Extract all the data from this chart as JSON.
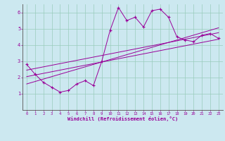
{
  "xlabel": "Windchill (Refroidissement éolien,°C)",
  "x_values": [
    0,
    1,
    2,
    3,
    4,
    5,
    6,
    7,
    8,
    9,
    10,
    11,
    12,
    13,
    14,
    15,
    16,
    17,
    18,
    19,
    20,
    21,
    22,
    23
  ],
  "main_y": [
    2.8,
    2.2,
    1.7,
    1.4,
    1.1,
    1.2,
    1.6,
    1.8,
    1.5,
    3.0,
    4.9,
    6.3,
    5.5,
    5.7,
    5.1,
    6.1,
    6.2,
    5.7,
    4.5,
    4.3,
    4.2,
    4.6,
    4.7,
    4.4
  ],
  "reg_y1": [
    2.05,
    2.15,
    2.25,
    2.35,
    2.45,
    2.55,
    2.65,
    2.75,
    2.85,
    2.95,
    3.05,
    3.15,
    3.25,
    3.35,
    3.45,
    3.55,
    3.65,
    3.75,
    3.85,
    3.95,
    4.05,
    4.15,
    4.25,
    4.35
  ],
  "reg_y2": [
    1.6,
    1.75,
    1.9,
    2.05,
    2.2,
    2.35,
    2.5,
    2.65,
    2.8,
    2.95,
    3.1,
    3.25,
    3.4,
    3.55,
    3.7,
    3.85,
    4.0,
    4.15,
    4.3,
    4.45,
    4.6,
    4.75,
    4.9,
    5.05
  ],
  "reg_y3": [
    2.45,
    2.55,
    2.65,
    2.75,
    2.85,
    2.95,
    3.05,
    3.15,
    3.25,
    3.35,
    3.45,
    3.55,
    3.65,
    3.75,
    3.85,
    3.95,
    4.05,
    4.15,
    4.25,
    4.35,
    4.45,
    4.55,
    4.65,
    4.75
  ],
  "line_color": "#990099",
  "bg_color": "#cce8f0",
  "grid_color": "#99ccbb",
  "ylim": [
    0,
    6.5
  ],
  "xlim": [
    -0.5,
    23.5
  ],
  "yticks": [
    1,
    2,
    3,
    4,
    5,
    6
  ],
  "xticks": [
    0,
    1,
    2,
    3,
    4,
    5,
    6,
    7,
    8,
    9,
    10,
    11,
    12,
    13,
    14,
    15,
    16,
    17,
    18,
    19,
    20,
    21,
    22,
    23
  ]
}
